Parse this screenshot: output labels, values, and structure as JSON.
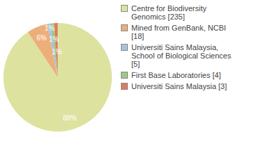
{
  "chart_data": {
    "type": "pie",
    "categories": [
      "Centre for Biodiversity Genomics [235]",
      "Mined from GenBank, NCBI [18]",
      "Universiti Sains Malaysia, School of Biological Sciences [5]",
      "First Base Laboratories [4]",
      "Universiti Sains Malaysia [3]"
    ],
    "values": [
      88,
      6,
      1,
      1,
      1
    ],
    "value_labels": [
      "88%",
      "6%",
      "1%",
      "1%",
      "1%"
    ],
    "colors": [
      "#dde29f",
      "#edae7a",
      "#a9c1de",
      "#9dc985",
      "#e07a60"
    ],
    "data_labels": true,
    "legend": "right"
  }
}
